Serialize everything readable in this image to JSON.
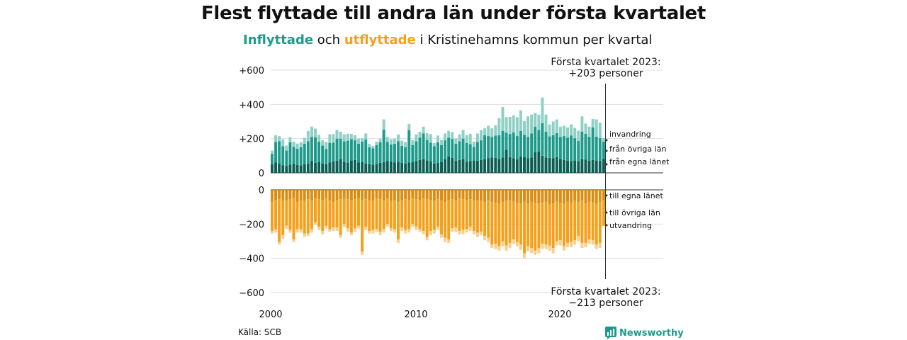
{
  "title": "Flest flyttade till andra län under första kvartalet",
  "subtitle": {
    "in_word": "Inflyttade",
    "and_word": " och ",
    "out_word": "utflyttade",
    "rest": " i Kristinehamns kommun per kvartal"
  },
  "source": "Källa: SCB",
  "brand": "Newsworthy",
  "colors": {
    "in_same": "#0c5e55",
    "in_other": "#1e9a8a",
    "in_abroad": "#8fd0c6",
    "out_same": "#d98d12",
    "out_other": "#f5a01a",
    "out_abroad": "#f9cf8c",
    "grid": "#dddddd"
  },
  "annotations": {
    "top_line1": "Första kvartalet 2023:",
    "top_line2": "+203 personer",
    "bottom_line1": "Första kvartalet 2023:",
    "bottom_line2": "−213 personer"
  },
  "chart_data": [
    {
      "type": "bar",
      "stacked": true,
      "subtype": "inflow",
      "x_ticks": [
        "2000",
        "2010",
        "2020"
      ],
      "y_ticks": [
        "+600",
        "+400",
        "+200",
        "0"
      ],
      "ylim": [
        0,
        600
      ],
      "x_start": "2000 Q1",
      "x_end": "2023 Q1",
      "series_labels": [
        "invandring",
        "från övriga län",
        "från egna länet"
      ],
      "series": [
        {
          "name": "från egna länet",
          "values": [
            50,
            60,
            55,
            45,
            40,
            48,
            52,
            46,
            44,
            50,
            55,
            70,
            58,
            62,
            55,
            50,
            60,
            66,
            70,
            80,
            65,
            58,
            72,
            75,
            60,
            62,
            55,
            50,
            48,
            52,
            58,
            62,
            70,
            66,
            60,
            65,
            58,
            55,
            60,
            62,
            70,
            75,
            80,
            72,
            66,
            55,
            58,
            62,
            80,
            95,
            88,
            70,
            75,
            80,
            65,
            68,
            72,
            70,
            75,
            80,
            85,
            90,
            88,
            80,
            90,
            135,
            92,
            86,
            80,
            95,
            92,
            85,
            90,
            120,
            125,
            100,
            90,
            88,
            85,
            92,
            80,
            75,
            70,
            68,
            72,
            66,
            80,
            78,
            70,
            75,
            72,
            68,
            82
          ]
        },
        {
          "name": "från övriga län",
          "values": [
            60,
            120,
            130,
            110,
            90,
            130,
            100,
            95,
            105,
            120,
            130,
            140,
            150,
            120,
            105,
            90,
            115,
            110,
            130,
            120,
            120,
            130,
            125,
            115,
            110,
            120,
            140,
            100,
            95,
            110,
            120,
            190,
            110,
            100,
            110,
            120,
            100,
            95,
            190,
            100,
            115,
            130,
            150,
            120,
            110,
            100,
            120,
            100,
            110,
            110,
            110,
            100,
            110,
            120,
            110,
            100,
            80,
            110,
            115,
            140,
            130,
            120,
            130,
            140,
            155,
            100,
            135,
            150,
            135,
            150,
            130,
            125,
            140,
            150,
            125,
            190,
            150,
            125,
            135,
            140,
            130,
            140,
            135,
            150,
            130,
            120,
            160,
            150,
            140,
            190,
            140,
            135,
            100
          ]
        },
        {
          "name": "invandring",
          "values": [
            20,
            40,
            30,
            40,
            30,
            30,
            30,
            30,
            30,
            35,
            60,
            60,
            50,
            40,
            30,
            40,
            50,
            50,
            50,
            40,
            40,
            40,
            30,
            30,
            30,
            20,
            35,
            20,
            15,
            20,
            20,
            60,
            30,
            30,
            30,
            40,
            30,
            30,
            35,
            30,
            40,
            35,
            40,
            40,
            50,
            20,
            40,
            30,
            40,
            40,
            40,
            30,
            40,
            50,
            45,
            60,
            30,
            50,
            60,
            40,
            60,
            50,
            60,
            100,
            140,
            90,
            100,
            100,
            110,
            120,
            80,
            120,
            110,
            80,
            90,
            150,
            100,
            70,
            80,
            80,
            60,
            60,
            60,
            65,
            60,
            60,
            90,
            60,
            60,
            50,
            100,
            90,
            21
          ]
        }
      ]
    },
    {
      "type": "bar",
      "stacked": true,
      "subtype": "outflow",
      "y_ticks": [
        "0",
        "−200",
        "−400",
        "−600"
      ],
      "ylim": [
        -600,
        0
      ],
      "series_labels": [
        "till egna länet",
        "till övriga län",
        "utvandring"
      ],
      "series": [
        {
          "name": "till egna länet",
          "values": [
            -70,
            -60,
            -55,
            -65,
            -60,
            -55,
            -50,
            -70,
            -60,
            -65,
            -55,
            -60,
            -50,
            -55,
            -60,
            -50,
            -60,
            -70,
            -60,
            -55,
            -50,
            -55,
            -60,
            -55,
            -50,
            -60,
            -55,
            -60,
            -65,
            -50,
            -55,
            -60,
            -50,
            -65,
            -60,
            -70,
            -60,
            -55,
            -60,
            -50,
            -55,
            -60,
            -50,
            -55,
            -60,
            -65,
            -55,
            -60,
            -70,
            -60,
            -55,
            -60,
            -50,
            -55,
            -60,
            -55,
            -60,
            -60,
            -65,
            -70,
            -60,
            -70,
            -75,
            -80,
            -70,
            -65,
            -60,
            -70,
            -75,
            -80,
            -70,
            -80,
            -70,
            -75,
            -80,
            -75,
            -70,
            -85,
            -80,
            -70,
            -75,
            -80,
            -70,
            -75,
            -65,
            -70,
            -60,
            -80,
            -70,
            -75,
            -80,
            -70,
            -60
          ]
        },
        {
          "name": "till övriga län",
          "values": [
            -170,
            -170,
            -250,
            -200,
            -150,
            -180,
            -240,
            -160,
            -170,
            -190,
            -200,
            -170,
            -140,
            -160,
            -180,
            -160,
            -170,
            -150,
            -160,
            -210,
            -150,
            -170,
            -190,
            -170,
            -160,
            -300,
            -160,
            -180,
            -170,
            -180,
            -190,
            -170,
            -150,
            -160,
            -170,
            -220,
            -160,
            -180,
            -170,
            -150,
            -160,
            -170,
            -190,
            -220,
            -180,
            -170,
            -160,
            -200,
            -210,
            -230,
            -170,
            -160,
            -190,
            -180,
            -170,
            -160,
            -180,
            -190,
            -180,
            -200,
            -220,
            -250,
            -240,
            -250,
            -230,
            -260,
            -250,
            -220,
            -230,
            -240,
            -300,
            -250,
            -270,
            -280,
            -260,
            -240,
            -250,
            -240,
            -260,
            -230,
            -220,
            -250,
            -240,
            -230,
            -230,
            -200,
            -250,
            -230,
            -220,
            -220,
            -240,
            -240,
            -150
          ]
        },
        {
          "name": "utvandring",
          "values": [
            -15,
            -20,
            -15,
            -20,
            -20,
            -15,
            -15,
            -20,
            -20,
            -20,
            -15,
            -20,
            -15,
            -20,
            -20,
            -15,
            -15,
            -20,
            -20,
            -15,
            -20,
            -20,
            -15,
            -20,
            -15,
            -20,
            -20,
            -15,
            -20,
            -15,
            -20,
            -20,
            -15,
            -15,
            -20,
            -20,
            -20,
            -20,
            -20,
            -15,
            -20,
            -15,
            -20,
            -20,
            -25,
            -20,
            -20,
            -20,
            -25,
            -20,
            -20,
            -25,
            -20,
            -25,
            -20,
            -25,
            -20,
            -25,
            -20,
            -25,
            -25,
            -20,
            -30,
            -25,
            -30,
            -30,
            -30,
            -25,
            -25,
            -30,
            -30,
            -30,
            -30,
            -25,
            -30,
            -30,
            -25,
            -30,
            -30,
            -25,
            -30,
            -25,
            -25,
            -30,
            -25,
            -30,
            -30,
            -25,
            -25,
            -25,
            -25,
            -30,
            -3
          ]
        }
      ]
    }
  ]
}
